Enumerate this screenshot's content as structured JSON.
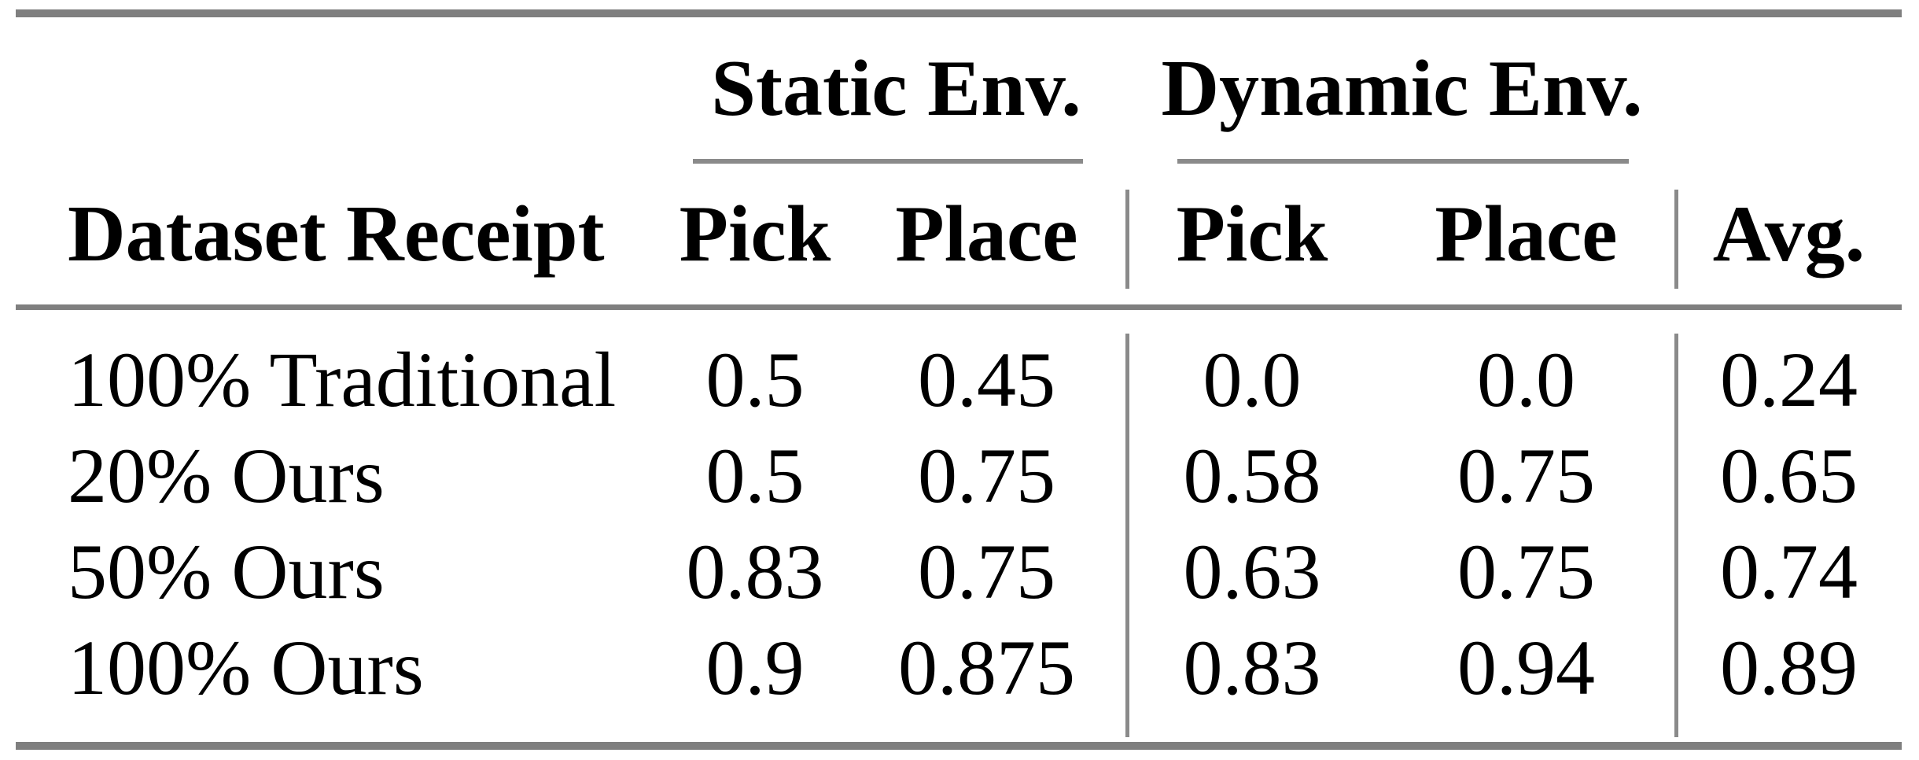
{
  "table": {
    "column_groups": [
      {
        "label": "Static Env.",
        "columns": [
          "Pick",
          "Place"
        ]
      },
      {
        "label": "Dynamic Env.",
        "columns": [
          "Pick",
          "Place"
        ]
      }
    ],
    "header": {
      "row_label": "Dataset Receipt",
      "avg_label": "Avg."
    },
    "rows": [
      {
        "label": "100% Traditional",
        "values": [
          "0.5",
          "0.45",
          "0.0",
          "0.0",
          "0.24"
        ]
      },
      {
        "label": "20% Ours",
        "values": [
          "0.5",
          "0.75",
          "0.58",
          "0.75",
          "0.65"
        ]
      },
      {
        "label": "50% Ours",
        "values": [
          "0.83",
          "0.75",
          "0.63",
          "0.75",
          "0.74"
        ]
      },
      {
        "label": "100% Ours",
        "values": [
          "0.9",
          "0.875",
          "0.83",
          "0.94",
          "0.89"
        ]
      }
    ],
    "colors": {
      "heavy_rule": "#7f7f7f",
      "light_rule": "#8a8a8a",
      "text": "#000000",
      "background": "#ffffff"
    }
  },
  "chart_data": {
    "type": "table",
    "title": "",
    "columns": [
      "Dataset Receipt",
      "Static Env. Pick",
      "Static Env. Place",
      "Dynamic Env. Pick",
      "Dynamic Env. Place",
      "Avg."
    ],
    "rows": [
      [
        "100% Traditional",
        0.5,
        0.45,
        0.0,
        0.0,
        0.24
      ],
      [
        "20% Ours",
        0.5,
        0.75,
        0.58,
        0.75,
        0.65
      ],
      [
        "50% Ours",
        0.83,
        0.75,
        0.63,
        0.75,
        0.74
      ],
      [
        "100% Ours",
        0.9,
        0.875,
        0.83,
        0.94,
        0.89
      ]
    ]
  }
}
